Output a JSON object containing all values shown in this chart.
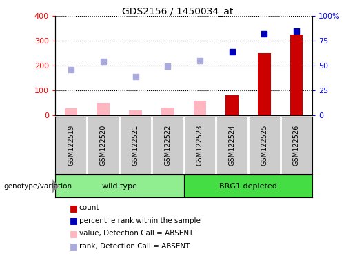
{
  "title": "GDS2156 / 1450034_at",
  "categories": [
    "GSM122519",
    "GSM122520",
    "GSM122521",
    "GSM122522",
    "GSM122523",
    "GSM122524",
    "GSM122525",
    "GSM122526"
  ],
  "bar_values": [
    28,
    50,
    20,
    30,
    58,
    80,
    250,
    325
  ],
  "bar_absent": [
    true,
    true,
    true,
    true,
    true,
    false,
    false,
    false
  ],
  "rank_values": [
    183,
    218,
    155,
    198,
    220,
    257,
    328,
    340
  ],
  "rank_absent": [
    true,
    true,
    true,
    true,
    true,
    false,
    false,
    false
  ],
  "left_ylim": [
    0,
    400
  ],
  "right_ylim": [
    0,
    100
  ],
  "left_yticks": [
    0,
    100,
    200,
    300,
    400
  ],
  "right_yticks": [
    0,
    25,
    50,
    75,
    100
  ],
  "right_yticklabels": [
    "0",
    "25",
    "50",
    "75",
    "100%"
  ],
  "bar_color_absent": "#FFB6C1",
  "bar_color_present": "#CC0000",
  "rank_color_absent": "#AAAADD",
  "rank_color_present": "#0000BB",
  "sample_bg": "#CCCCCC",
  "genotype_label": "genotype/variation",
  "wt_color": "#90EE90",
  "brg1_color": "#44DD44",
  "legend_entries": [
    "count",
    "percentile rank within the sample",
    "value, Detection Call = ABSENT",
    "rank, Detection Call = ABSENT"
  ],
  "legend_colors": [
    "#CC0000",
    "#0000BB",
    "#FFB6C1",
    "#AAAADD"
  ],
  "bar_width": 0.4
}
